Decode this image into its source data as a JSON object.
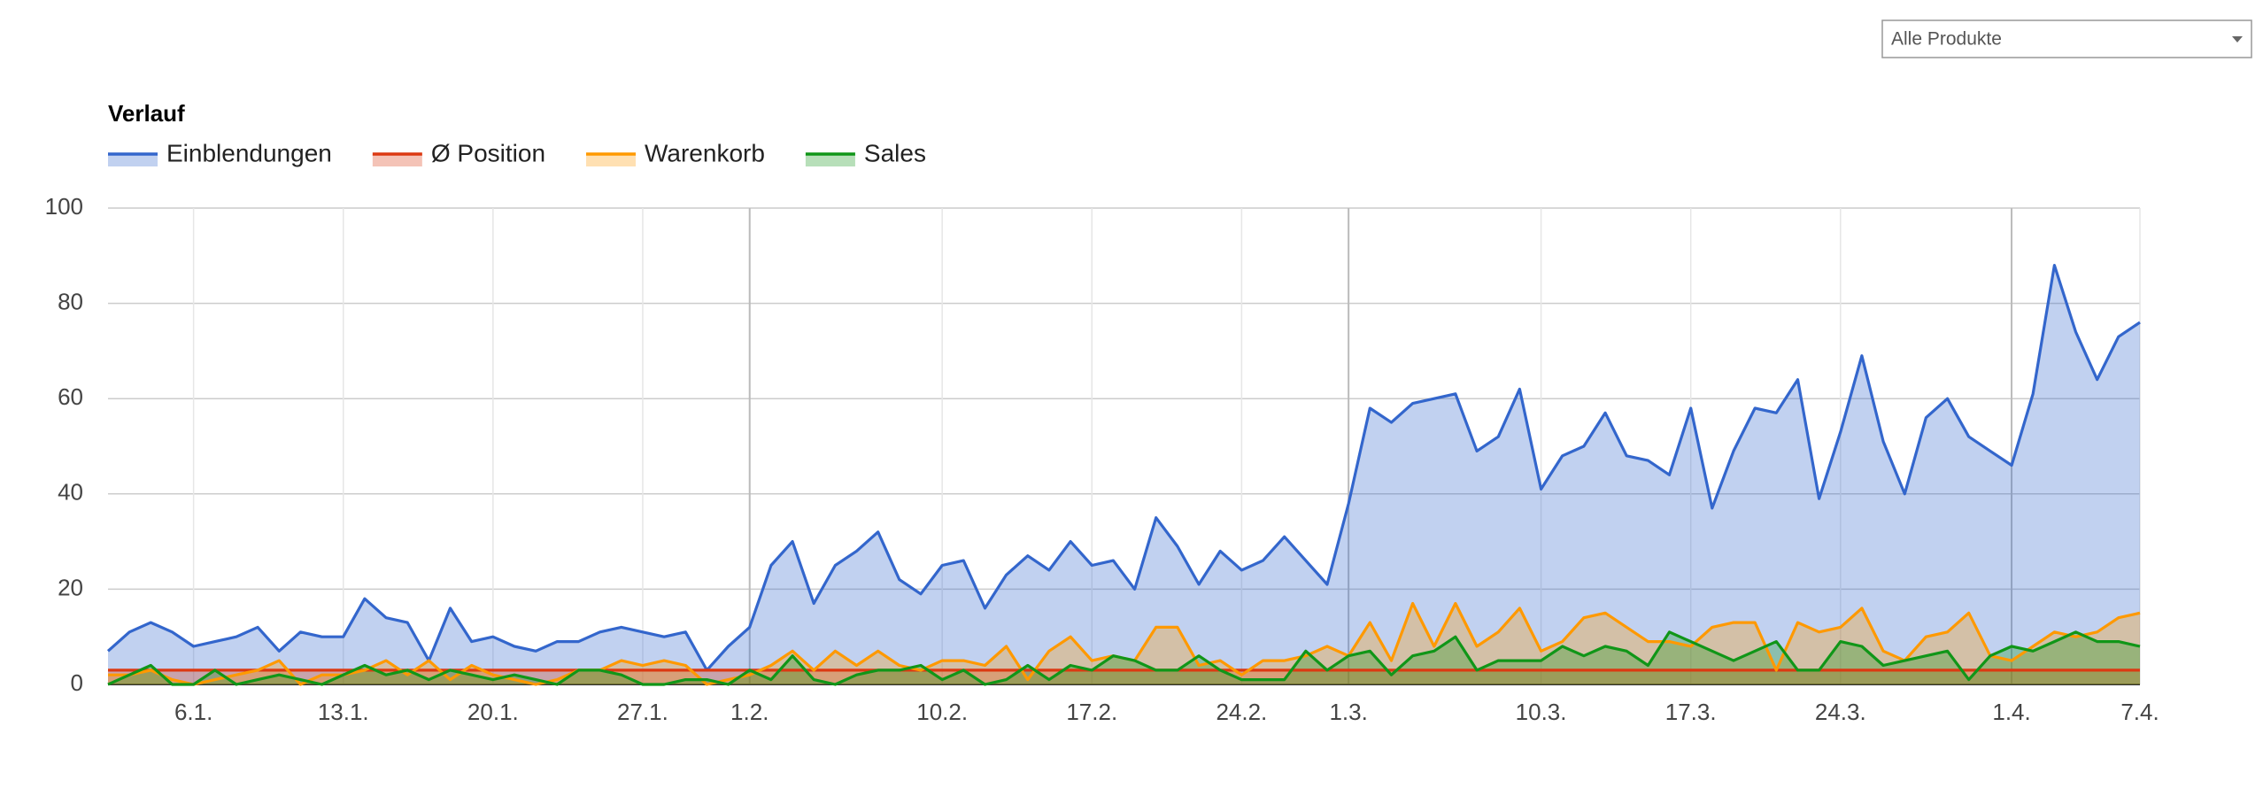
{
  "chart_data": {
    "type": "area",
    "title": "Verlauf",
    "filter": "Alle Produkte",
    "categories": [
      null,
      null,
      null,
      null,
      "6.1.",
      null,
      null,
      null,
      null,
      null,
      null,
      "13.1.",
      null,
      null,
      null,
      null,
      null,
      null,
      "20.1.",
      null,
      null,
      null,
      null,
      null,
      null,
      "27.1.",
      null,
      null,
      null,
      null,
      "1.2.",
      null,
      null,
      null,
      null,
      null,
      null,
      null,
      null,
      "10.2.",
      null,
      null,
      null,
      null,
      null,
      null,
      "17.2.",
      null,
      null,
      null,
      null,
      null,
      null,
      "24.2.",
      null,
      null,
      null,
      null,
      "1.3.",
      null,
      null,
      null,
      null,
      null,
      null,
      null,
      null,
      "10.3.",
      null,
      null,
      null,
      null,
      null,
      null,
      "17.3.",
      null,
      null,
      null,
      null,
      null,
      null,
      "24.3.",
      null,
      null,
      null,
      null,
      null,
      null,
      null,
      "1.4.",
      null,
      null,
      null,
      null,
      null,
      "7.4."
    ],
    "month_starts": [
      "1.2.",
      "1.3.",
      "1.4."
    ],
    "series": [
      {
        "name": "Einblendungen",
        "color": "#3366cc",
        "values": [
          7,
          11,
          13,
          11,
          8,
          9,
          10,
          12,
          7,
          11,
          10,
          10,
          18,
          14,
          13,
          5,
          16,
          9,
          10,
          8,
          7,
          9,
          9,
          11,
          12,
          11,
          10,
          11,
          3,
          8,
          12,
          25,
          30,
          17,
          25,
          28,
          32,
          22,
          19,
          25,
          26,
          16,
          23,
          27,
          24,
          30,
          25,
          26,
          20,
          35,
          29,
          21,
          28,
          24,
          26,
          31,
          26,
          21,
          38,
          58,
          55,
          59,
          60,
          61,
          49,
          52,
          62,
          41,
          48,
          50,
          57,
          48,
          47,
          44,
          58,
          37,
          49,
          58,
          57,
          64,
          39,
          53,
          69,
          51,
          40,
          56,
          60,
          52,
          49,
          46,
          61,
          88,
          74,
          64,
          73,
          76
        ]
      },
      {
        "name": "Ø Position",
        "color": "#dc3912",
        "values": [
          3,
          3,
          3,
          3,
          3,
          3,
          3,
          3,
          3,
          3,
          3,
          3,
          3,
          3,
          3,
          3,
          3,
          3,
          3,
          3,
          3,
          3,
          3,
          3,
          3,
          3,
          3,
          3,
          3,
          3,
          3,
          3,
          3,
          3,
          3,
          3,
          3,
          3,
          3,
          3,
          3,
          3,
          3,
          3,
          3,
          3,
          3,
          3,
          3,
          3,
          3,
          3,
          3,
          3,
          3,
          3,
          3,
          3,
          3,
          3,
          3,
          3,
          3,
          3,
          3,
          3,
          3,
          3,
          3,
          3,
          3,
          3,
          3,
          3,
          3,
          3,
          3,
          3,
          3,
          3,
          3,
          3,
          3,
          3,
          3,
          3,
          3,
          3,
          3,
          3,
          3,
          3,
          3,
          3,
          3,
          3
        ]
      },
      {
        "name": "Warenkorb",
        "color": "#ff9900",
        "values": [
          2,
          2,
          3,
          1,
          0,
          1,
          2,
          3,
          5,
          0,
          2,
          2,
          3,
          5,
          2,
          5,
          1,
          4,
          2,
          1,
          0,
          1,
          3,
          3,
          5,
          4,
          5,
          4,
          0,
          1,
          2,
          4,
          7,
          3,
          7,
          4,
          7,
          4,
          3,
          5,
          5,
          4,
          8,
          1,
          7,
          10,
          5,
          6,
          5,
          12,
          12,
          4,
          5,
          2,
          5,
          5,
          6,
          8,
          6,
          13,
          5,
          17,
          8,
          17,
          8,
          11,
          16,
          7,
          9,
          14,
          15,
          12,
          9,
          9,
          8,
          12,
          13,
          13,
          3,
          13,
          11,
          12,
          16,
          7,
          5,
          10,
          11,
          15,
          6,
          5,
          8,
          11,
          10,
          11,
          14,
          15
        ]
      },
      {
        "name": "Sales",
        "color": "#109618",
        "values": [
          0,
          2,
          4,
          0,
          0,
          3,
          0,
          1,
          2,
          1,
          0,
          2,
          4,
          2,
          3,
          1,
          3,
          2,
          1,
          2,
          1,
          0,
          3,
          3,
          2,
          0,
          0,
          1,
          1,
          0,
          3,
          1,
          6,
          1,
          0,
          2,
          3,
          3,
          4,
          1,
          3,
          0,
          1,
          4,
          1,
          4,
          3,
          6,
          5,
          3,
          3,
          6,
          3,
          1,
          1,
          1,
          7,
          3,
          6,
          7,
          2,
          6,
          7,
          10,
          3,
          5,
          5,
          5,
          8,
          6,
          8,
          7,
          4,
          11,
          9,
          7,
          5,
          7,
          9,
          3,
          3,
          9,
          8,
          4,
          5,
          6,
          7,
          1,
          6,
          8,
          7,
          9,
          11,
          9,
          9,
          8
        ]
      }
    ],
    "ylim": [
      0,
      100
    ],
    "yticks": [
      0,
      20,
      40,
      60,
      80,
      100
    ],
    "grid": true,
    "legend": "top"
  }
}
